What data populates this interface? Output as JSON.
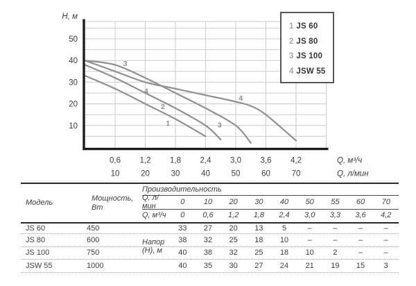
{
  "colors": {
    "curve": "#909090",
    "curve_label": "#8d8d8d",
    "grid": "#cbcbcb",
    "axis": "#1c1c1c",
    "text": "#3d3d3d",
    "muted_number": "#a6a6a8",
    "legend_border": "#56575b",
    "table_line": "#2a2a2a",
    "table_thin_line": "#4a4a4a",
    "dotted_line": "#9c9c9c"
  },
  "chart_data": {
    "type": "line",
    "title": "",
    "grid": true,
    "legend_position": "top-right",
    "y_axis": {
      "label": "H, м",
      "ticks": [
        50,
        40,
        30,
        20,
        10
      ],
      "range": [
        0,
        58
      ],
      "grid_step": 5
    },
    "x_axis": {
      "label_m3h": "Q, м³/ч",
      "label_lmin": "Q, л/мин",
      "range_m3h": [
        0,
        4.8
      ],
      "grid_step_m3h": 0.6,
      "ticks": [
        {
          "m3h": "0,6",
          "lmin": "10"
        },
        {
          "m3h": "1,2",
          "lmin": "20"
        },
        {
          "m3h": "1,8",
          "lmin": "30"
        },
        {
          "m3h": "2,4",
          "lmin": "40"
        },
        {
          "m3h": "3,0",
          "lmin": "50"
        },
        {
          "m3h": "3,6",
          "lmin": "60"
        },
        {
          "m3h": "4,2",
          "lmin": "70"
        }
      ]
    },
    "series": [
      {
        "num": "1",
        "name": "JS 60",
        "points_lmin_h": [
          [
            0,
            33
          ],
          [
            10,
            27
          ],
          [
            20,
            20
          ],
          [
            30,
            13
          ],
          [
            40,
            5
          ]
        ]
      },
      {
        "num": "2",
        "name": "JS 80",
        "points_lmin_h": [
          [
            0,
            38
          ],
          [
            10,
            32
          ],
          [
            20,
            25
          ],
          [
            30,
            18
          ],
          [
            40,
            10
          ],
          [
            45,
            3.5
          ]
        ]
      },
      {
        "num": "3",
        "name": "JS 100",
        "points_lmin_h": [
          [
            0,
            40
          ],
          [
            10,
            38
          ],
          [
            20,
            32
          ],
          [
            30,
            25
          ],
          [
            40,
            18
          ],
          [
            50,
            10
          ],
          [
            55,
            2
          ]
        ]
      },
      {
        "num": "4",
        "name": "JSW 55",
        "points_lmin_h": [
          [
            0,
            40
          ],
          [
            10,
            35
          ],
          [
            20,
            30
          ],
          [
            30,
            27
          ],
          [
            40,
            24
          ],
          [
            50,
            21
          ],
          [
            55,
            19
          ],
          [
            60,
            15
          ],
          [
            70,
            3
          ]
        ]
      }
    ],
    "curve_labels": [
      {
        "text": "3",
        "q_m3h": 0.8,
        "h_m": 38.6
      },
      {
        "text": "4",
        "q_m3h": 1.22,
        "h_m": 26.0
      },
      {
        "text": "2",
        "q_m3h": 1.55,
        "h_m": 18.8
      },
      {
        "text": "1",
        "q_m3h": 1.65,
        "h_m": 11.0
      },
      {
        "text": "3",
        "q_m3h": 2.68,
        "h_m": 10.2
      },
      {
        "text": "4",
        "q_m3h": 3.1,
        "h_m": 22.6
      }
    ]
  },
  "legend": {
    "items": [
      {
        "num": "1",
        "name": "JS 60"
      },
      {
        "num": "2",
        "name": "JS 80"
      },
      {
        "num": "3",
        "name": "JS 100"
      },
      {
        "num": "4",
        "name": "JSW 55"
      }
    ]
  },
  "table": {
    "col_model": "Модель",
    "col_power": "Мощность, Вт",
    "perf_title": "Производительность",
    "q_lmin_label": "Q, л/мин",
    "q_m3h_label": "Q, м³/ч",
    "q_lmin": [
      "0",
      "10",
      "20",
      "30",
      "40",
      "50",
      "55",
      "60",
      "70"
    ],
    "q_m3h": [
      "0",
      "0,6",
      "1,2",
      "1,8",
      "2,4",
      "3,0",
      "3,3",
      "3,6",
      "4,2"
    ],
    "head_label": "Напор\n(Н), м",
    "rows": [
      {
        "model": "JS 60",
        "power": "450",
        "values": [
          "33",
          "27",
          "20",
          "13",
          "5",
          "–",
          "–",
          "–",
          "–"
        ]
      },
      {
        "model": "JS 80",
        "power": "600",
        "values": [
          "38",
          "32",
          "25",
          "18",
          "10",
          "–",
          "–",
          "–",
          "–"
        ]
      },
      {
        "model": "JS 100",
        "power": "750",
        "values": [
          "40",
          "38",
          "32",
          "25",
          "18",
          "10",
          "2",
          "–",
          "–"
        ]
      },
      {
        "model": "JSW 55",
        "power": "1000",
        "values": [
          "40",
          "35",
          "30",
          "27",
          "24",
          "21",
          "19",
          "15",
          "3"
        ]
      }
    ]
  }
}
